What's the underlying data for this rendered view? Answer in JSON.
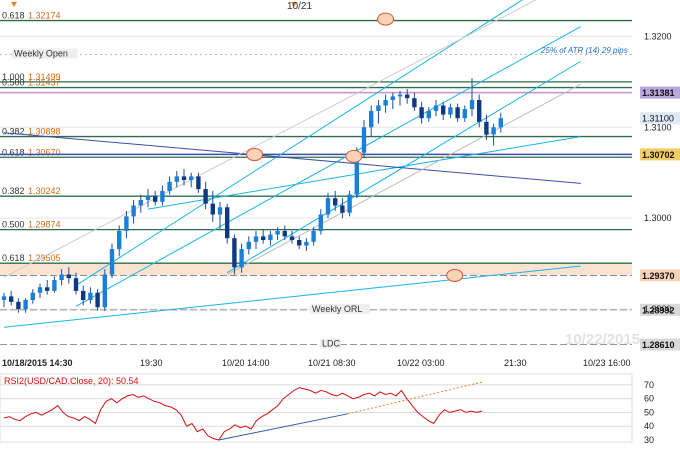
{
  "chart_data": [
    {
      "type": "candlestick",
      "title": "",
      "date_label": "10/21",
      "x_ticks": [
        "10/18/2015 14:30",
        "19:30",
        "10/20 14:00",
        "10/21 08:30",
        "10/22 03:00",
        "21:30",
        "10/23 16:00"
      ],
      "y_ticks": [
        "1.3200",
        "1.3100",
        "1.3000",
        "1.2900"
      ],
      "ylim": [
        1.2855,
        1.324
      ],
      "watermark": "10/22/2015",
      "atr_note": "25% of ATR (14) 29 pips",
      "price_tags": [
        {
          "label": "1.31381",
          "value": 1.31381,
          "color": "#b9a6dc",
          "bold": true
        },
        {
          "label": "1.31100",
          "value": 1.311,
          "color": "#dfe9f5",
          "bold": false
        },
        {
          "label": "1.30702",
          "value": 1.30702,
          "color": "#f3cc66",
          "bold": true
        },
        {
          "label": "1.29370",
          "value": 1.2937,
          "color": "#f6d2b8",
          "bold": true
        },
        {
          "label": "1.28992",
          "value": 1.28992,
          "color": "#d8d8d8",
          "bold": true
        },
        {
          "label": "1.28610",
          "value": 1.2861,
          "color": "#d8d8d8",
          "bold": true
        }
      ],
      "fib_levels": [
        {
          "ratio": "0.618",
          "price": "1.32174",
          "value": 1.32174
        },
        {
          "ratio": "1.000",
          "price": "1.31499",
          "value": 1.31499
        },
        {
          "ratio": "0.500",
          "price": "1.31437",
          "value": 1.31437
        },
        {
          "ratio": "0.382",
          "price": "1.30898",
          "value": 1.30898
        },
        {
          "ratio": "0.618",
          "price": "1.30670",
          "value": 1.3067
        },
        {
          "ratio": "0.382",
          "price": "1.30242",
          "value": 1.30242
        },
        {
          "ratio": "0.500",
          "price": "1.29874",
          "value": 1.29874
        },
        {
          "ratio": "0.618",
          "price": "1.29505",
          "value": 1.29505
        }
      ],
      "level_labels": [
        {
          "text": "Weekly Open",
          "value": 1.318
        },
        {
          "text": "Weekly ORL",
          "value": 1.28992
        },
        {
          "text": "LDC",
          "value": 1.2861
        }
      ],
      "candles": [
        [
          1.291,
          1.2918,
          1.2902,
          1.2914
        ],
        [
          1.2914,
          1.292,
          1.2904,
          1.2908
        ],
        [
          1.2908,
          1.2912,
          1.2896,
          1.29
        ],
        [
          1.29,
          1.2912,
          1.2896,
          1.291
        ],
        [
          1.291,
          1.2922,
          1.2906,
          1.2918
        ],
        [
          1.2918,
          1.2928,
          1.2912,
          1.2924
        ],
        [
          1.2924,
          1.2932,
          1.2916,
          1.292
        ],
        [
          1.292,
          1.2936,
          1.2918,
          1.2932
        ],
        [
          1.2932,
          1.2944,
          1.2926,
          1.2938
        ],
        [
          1.2938,
          1.2946,
          1.2928,
          1.2934
        ],
        [
          1.2934,
          1.294,
          1.2916,
          1.292
        ],
        [
          1.292,
          1.2926,
          1.2904,
          1.291
        ],
        [
          1.291,
          1.2924,
          1.2906,
          1.2918
        ],
        [
          1.2918,
          1.2922,
          1.2898,
          1.2902
        ],
        [
          1.2902,
          1.2944,
          1.2898,
          1.2938
        ],
        [
          1.2938,
          1.2972,
          1.2934,
          1.2966
        ],
        [
          1.2966,
          1.2992,
          1.2958,
          1.2986
        ],
        [
          1.2986,
          1.3008,
          1.2978,
          1.3002
        ],
        [
          1.3002,
          1.302,
          1.2994,
          1.3014
        ],
        [
          1.3014,
          1.3026,
          1.3006,
          1.302
        ],
        [
          1.302,
          1.3032,
          1.3012,
          1.3024
        ],
        [
          1.3024,
          1.303,
          1.3014,
          1.3018
        ],
        [
          1.3018,
          1.3036,
          1.3014,
          1.303
        ],
        [
          1.303,
          1.3046,
          1.3026,
          1.304
        ],
        [
          1.304,
          1.3052,
          1.3034,
          1.3046
        ],
        [
          1.3046,
          1.3054,
          1.3036,
          1.3042
        ],
        [
          1.3042,
          1.305,
          1.3034,
          1.3046
        ],
        [
          1.3046,
          1.305,
          1.3028,
          1.3032
        ],
        [
          1.3032,
          1.304,
          1.301,
          1.3016
        ],
        [
          1.3016,
          1.303,
          1.2996,
          1.3004
        ],
        [
          1.3004,
          1.3018,
          1.2988,
          1.3012
        ],
        [
          1.3012,
          1.3016,
          1.2972,
          1.2978
        ],
        [
          1.2978,
          1.2982,
          1.2938,
          1.2946
        ],
        [
          1.2946,
          1.2972,
          1.294,
          1.2966
        ],
        [
          1.2966,
          1.298,
          1.296,
          1.2974
        ],
        [
          1.2974,
          1.2986,
          1.2966,
          1.298
        ],
        [
          1.298,
          1.2988,
          1.2972,
          1.2976
        ],
        [
          1.2976,
          1.2986,
          1.297,
          1.2982
        ],
        [
          1.2982,
          1.299,
          1.2976,
          1.2986
        ],
        [
          1.2986,
          1.2992,
          1.2976,
          1.298
        ],
        [
          1.298,
          1.2986,
          1.2972,
          1.2976
        ],
        [
          1.2976,
          1.298,
          1.2966,
          1.297
        ],
        [
          1.297,
          1.2978,
          1.2964,
          1.2974
        ],
        [
          1.2974,
          1.299,
          1.297,
          1.2986
        ],
        [
          1.2986,
          1.301,
          1.2982,
          1.3004
        ],
        [
          1.3004,
          1.3028,
          1.3,
          1.3022
        ],
        [
          1.3022,
          1.303,
          1.3008,
          1.3014
        ],
        [
          1.3014,
          1.3022,
          1.3,
          1.3006
        ],
        [
          1.3006,
          1.303,
          1.3002,
          1.3026
        ],
        [
          1.3026,
          1.3078,
          1.3022,
          1.3072
        ],
        [
          1.3072,
          1.3108,
          1.3066,
          1.31
        ],
        [
          1.31,
          1.3124,
          1.309,
          1.3118
        ],
        [
          1.3118,
          1.313,
          1.3104,
          1.3124
        ],
        [
          1.3124,
          1.3136,
          1.3116,
          1.313
        ],
        [
          1.313,
          1.3138,
          1.312,
          1.3134
        ],
        [
          1.3134,
          1.314,
          1.3124,
          1.3136
        ],
        [
          1.3136,
          1.3142,
          1.3126,
          1.3132
        ],
        [
          1.3132,
          1.3138,
          1.3118,
          1.3122
        ],
        [
          1.3122,
          1.3128,
          1.3104,
          1.311
        ],
        [
          1.311,
          1.3122,
          1.3106,
          1.3118
        ],
        [
          1.3118,
          1.313,
          1.3112,
          1.3124
        ],
        [
          1.3124,
          1.3128,
          1.3108,
          1.3114
        ],
        [
          1.3114,
          1.3126,
          1.311,
          1.3122
        ],
        [
          1.3122,
          1.3126,
          1.3106,
          1.311
        ],
        [
          1.311,
          1.3124,
          1.3106,
          1.312
        ],
        [
          1.312,
          1.3154,
          1.3112,
          1.313
        ],
        [
          1.313,
          1.3136,
          1.31,
          1.3106
        ],
        [
          1.3106,
          1.3114,
          1.3086,
          1.3092
        ],
        [
          1.3092,
          1.3104,
          1.308,
          1.31
        ],
        [
          1.31,
          1.3116,
          1.3094,
          1.311
        ]
      ],
      "fib_zone": {
        "from": 1.2937,
        "to": 1.29505
      },
      "lines": [
        {
          "name": "blue-channel-top",
          "color": "#19b4e6",
          "x1": 10,
          "y1": 1.2926,
          "x2": 69,
          "y2": 1.3225
        },
        {
          "name": "blue-channel-mid",
          "color": "#19b4e6",
          "x1": 10,
          "y1": 1.2903,
          "x2": 69,
          "y2": 1.3162
        },
        {
          "name": "blue-channel-mid2",
          "color": "#19b4e6",
          "x1": 31,
          "y1": 1.294,
          "x2": 69,
          "y2": 1.312
        },
        {
          "name": "blue-channel-bottom",
          "color": "#19b4e6",
          "x1": 0,
          "y1": 1.288,
          "x2": 69,
          "y2": 1.2938
        },
        {
          "name": "lower-trend",
          "color": "#19b4e6",
          "x1": 20,
          "y1": 1.301,
          "x2": 69,
          "y2": 1.3075
        },
        {
          "name": "navy-trend",
          "color": "#3b4ea8",
          "x1": 0,
          "y1": 1.3094,
          "x2": 69,
          "y2": 1.3046
        },
        {
          "name": "grey-trend",
          "color": "#bdbdbd",
          "x1": 31,
          "y1": 1.2938,
          "x2": 69,
          "y2": 1.31
        },
        {
          "name": "grey-upper",
          "color": "#cccccc",
          "x1": 0,
          "y1": 1.2935,
          "x2": 69,
          "y2": 1.322
        }
      ],
      "markers": [
        {
          "name": "ellipse-top",
          "x": 53.0,
          "y": 1.3219
        },
        {
          "name": "ellipse-mid",
          "x": 34.8,
          "y": 1.307
        },
        {
          "name": "ellipse-right",
          "x": 48.6,
          "y": 1.3068
        },
        {
          "name": "ellipse-edge",
          "x": 62.6,
          "y": 1.2937
        }
      ]
    },
    {
      "type": "line",
      "title": "RSI2(USD/CAD.Close, 20): 50.54",
      "ylim": [
        30,
        75
      ],
      "y_ticks": [
        "70",
        "60",
        "50",
        "40",
        "30"
      ],
      "grid_values": [
        70,
        60,
        50,
        40
      ],
      "values": [
        46,
        47,
        45,
        44,
        47,
        49,
        50,
        48,
        50,
        52,
        55,
        50,
        47,
        46,
        44,
        47,
        45,
        42,
        52,
        58,
        60,
        57,
        60,
        62,
        63,
        61,
        62,
        60,
        58,
        57,
        55,
        54,
        52,
        48,
        40,
        42,
        36,
        38,
        33,
        31,
        30,
        36,
        38,
        41,
        39,
        40,
        38,
        44,
        47,
        49,
        52,
        55,
        60,
        63,
        66,
        68,
        67,
        66,
        64,
        66,
        65,
        63,
        62,
        64,
        62,
        60,
        61,
        63,
        64,
        62,
        65,
        63,
        64,
        62,
        66,
        60,
        55,
        50,
        47,
        44,
        42,
        48,
        52,
        50,
        51,
        52,
        50,
        51,
        50,
        51
      ],
      "support_line": {
        "x1": 40,
        "y1": 30,
        "x2": 64,
        "y2": 49
      },
      "resistance_line": {
        "x1": 64,
        "y1": 49,
        "x2": 89,
        "y2": 72
      }
    }
  ]
}
